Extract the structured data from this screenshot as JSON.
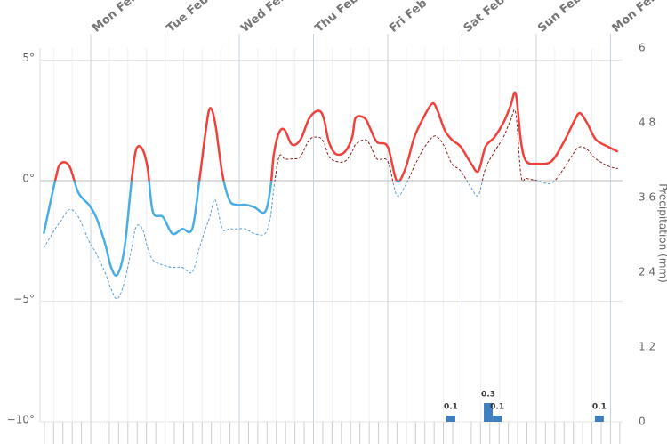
{
  "chart_data": {
    "type": "line",
    "y2label": "Precipitation (mm)",
    "xlim": [
      -16.4,
      171.9
    ],
    "xticks": [
      {
        "value": 0,
        "label": "Mon Feb"
      },
      {
        "value": 24,
        "label": "Tue Feb"
      },
      {
        "value": 48,
        "label": "Wed Feb"
      },
      {
        "value": 72,
        "label": "Thu Feb"
      },
      {
        "value": 96,
        "label": "Fri Feb"
      },
      {
        "value": 120,
        "label": "Sat Feb"
      },
      {
        "value": 144,
        "label": "Sun Feb"
      },
      {
        "value": 168,
        "label": "Mon Feb"
      }
    ],
    "ylim": [
      -10,
      5.5
    ],
    "yticks": [
      {
        "value": -10,
        "label": "−10°"
      },
      {
        "value": -5,
        "label": "−5°"
      },
      {
        "value": 0,
        "label": "0°"
      },
      {
        "value": 5,
        "label": "5°"
      }
    ],
    "y2lim": [
      0,
      6
    ],
    "y2ticks": [
      0,
      1.2,
      2.4,
      3.6,
      4.8,
      6
    ],
    "grid": true,
    "x": [
      -15.2,
      -11.5,
      -9.8,
      -6.9,
      -4.0,
      -0.6,
      1.7,
      4.6,
      6.6,
      8.6,
      10.9,
      13.2,
      14.7,
      16.7,
      18.4,
      20.1,
      23.3,
      26.4,
      29.6,
      32.8,
      35.1,
      37.1,
      38.5,
      40.2,
      42.5,
      44.8,
      47.1,
      50.0,
      52.9,
      56.3,
      58.1,
      59.2,
      60.9,
      62.7,
      65.0,
      67.8,
      70.7,
      73.6,
      75.3,
      77.0,
      79.3,
      82.2,
      84.5,
      85.6,
      88.5,
      90.2,
      92.5,
      96.0,
      98.9,
      101.7,
      104.6,
      107.5,
      110.4,
      112.1,
      114.4,
      116.7,
      119.6,
      123.0,
      125.3,
      127.6,
      130.5,
      133.4,
      135.7,
      137.4,
      139.1,
      140.8,
      144.3,
      148.9,
      152.9,
      156.4,
      158.1,
      160.4,
      163.3,
      167.3,
      170.4
    ],
    "series": [
      {
        "type": "line",
        "color": "#f0413c",
        "negative_color": "#4aaee4",
        "threshold": 0,
        "dashed": false,
        "values": [
          -2.2,
          0,
          0.7,
          0.6,
          -0.5,
          -1.0,
          -1.5,
          -2.6,
          -3.6,
          -3.9,
          -2.8,
          0,
          1.3,
          1.3,
          0.5,
          -1.3,
          -1.5,
          -2.2,
          -2.0,
          -2.0,
          0,
          2.0,
          3.0,
          2.4,
          0.3,
          -0.8,
          -1.0,
          -1.0,
          -1.1,
          -1.3,
          -0.3,
          1.1,
          2.0,
          2.1,
          1.5,
          1.7,
          2.6,
          2.9,
          2.6,
          1.6,
          1.1,
          1.2,
          1.8,
          2.6,
          2.6,
          2.2,
          1.6,
          1.4,
          0,
          0.5,
          1.8,
          2.6,
          3.2,
          2.9,
          2.1,
          1.7,
          1.4,
          0.7,
          0.4,
          1.4,
          1.8,
          2.4,
          3.1,
          3.6,
          1.6,
          0.8,
          0.7,
          0.8,
          1.6,
          2.5,
          2.8,
          2.4,
          1.7,
          1.4,
          1.2
        ]
      },
      {
        "type": "line",
        "color": "#8b1a1a",
        "negative_color": "#5c9fd6",
        "threshold": 0,
        "dashed": true,
        "values": [
          -2.8,
          -2.0,
          -1.7,
          -1.2,
          -1.5,
          -2.5,
          -3.0,
          -3.8,
          -4.5,
          -4.9,
          -4.2,
          -2.8,
          -1.9,
          -2.0,
          -2.8,
          -3.3,
          -3.5,
          -3.6,
          -3.6,
          -3.8,
          -2.8,
          -2.0,
          -1.5,
          -0.8,
          -2.0,
          -2.0,
          -2.0,
          -2.0,
          -2.2,
          -2.2,
          -1.5,
          -0.3,
          1.0,
          0.9,
          0.9,
          1.0,
          1.7,
          1.8,
          1.6,
          1.0,
          0.8,
          0.8,
          1.2,
          1.5,
          1.7,
          1.5,
          0.9,
          0.8,
          -0.6,
          -0.2,
          0.6,
          1.3,
          1.8,
          1.8,
          1.4,
          0.7,
          0.4,
          -0.3,
          -0.6,
          0.5,
          1.2,
          1.8,
          2.5,
          2.8,
          0.2,
          0.1,
          0,
          -0.1,
          0.5,
          1.2,
          1.4,
          1.3,
          0.9,
          0.6,
          0.5
        ]
      },
      {
        "type": "bar",
        "axis": "y2",
        "color": "#3f7fbf",
        "x": [
          116.4,
          128.5,
          131.4,
          164.4
        ],
        "values": [
          0.1,
          0.3,
          0.1,
          0.1
        ]
      }
    ]
  }
}
